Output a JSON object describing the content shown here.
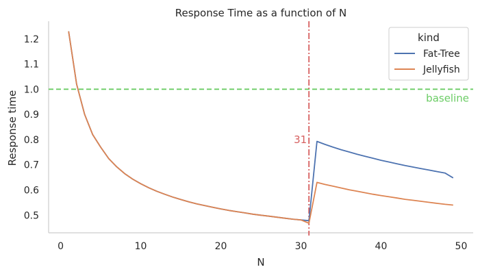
{
  "chart_data": {
    "type": "line",
    "title": "Response Time as a function of N",
    "xlabel": "N",
    "ylabel": "Response time",
    "xlim": [
      -1.5,
      51.5
    ],
    "ylim": [
      0.43,
      1.27
    ],
    "x_ticks": [
      0,
      10,
      20,
      30,
      40,
      50
    ],
    "y_ticks": [
      0.5,
      0.6,
      0.7,
      0.8,
      0.9,
      1.0,
      1.1,
      1.2
    ],
    "grid": false,
    "legend": {
      "title": "kind",
      "placement": "top-right"
    },
    "series": [
      {
        "name": "Fat-Tree",
        "color": "#4c72b0",
        "x": [
          1,
          2,
          3,
          4,
          5,
          6,
          7,
          8,
          9,
          10,
          11,
          12,
          13,
          14,
          15,
          16,
          17,
          18,
          19,
          20,
          21,
          22,
          23,
          24,
          25,
          26,
          27,
          28,
          29,
          30,
          31,
          32,
          33,
          34,
          35,
          36,
          37,
          38,
          39,
          40,
          41,
          42,
          43,
          44,
          45,
          46,
          47,
          48,
          49
        ],
        "y": [
          1.23,
          1.02,
          0.9,
          0.82,
          0.77,
          0.725,
          0.692,
          0.665,
          0.643,
          0.625,
          0.609,
          0.595,
          0.583,
          0.572,
          0.562,
          0.553,
          0.545,
          0.538,
          0.531,
          0.525,
          0.519,
          0.514,
          0.509,
          0.504,
          0.5,
          0.496,
          0.492,
          0.488,
          0.484,
          0.481,
          0.478,
          0.793,
          0.781,
          0.77,
          0.76,
          0.751,
          0.742,
          0.734,
          0.726,
          0.718,
          0.711,
          0.704,
          0.697,
          0.691,
          0.685,
          0.679,
          0.673,
          0.667,
          0.648
        ]
      },
      {
        "name": "Jellyfish",
        "color": "#dd8452",
        "x": [
          1,
          2,
          3,
          4,
          5,
          6,
          7,
          8,
          9,
          10,
          11,
          12,
          13,
          14,
          15,
          16,
          17,
          18,
          19,
          20,
          21,
          22,
          23,
          24,
          25,
          26,
          27,
          28,
          29,
          30,
          31,
          32,
          33,
          34,
          35,
          36,
          37,
          38,
          39,
          40,
          41,
          42,
          43,
          44,
          45,
          46,
          47,
          48,
          49
        ],
        "y": [
          1.23,
          1.02,
          0.9,
          0.82,
          0.77,
          0.725,
          0.692,
          0.665,
          0.643,
          0.625,
          0.609,
          0.595,
          0.583,
          0.572,
          0.562,
          0.553,
          0.545,
          0.538,
          0.531,
          0.525,
          0.519,
          0.514,
          0.509,
          0.504,
          0.5,
          0.496,
          0.492,
          0.488,
          0.484,
          0.481,
          0.468,
          0.63,
          0.622,
          0.615,
          0.608,
          0.601,
          0.595,
          0.589,
          0.583,
          0.578,
          0.573,
          0.568,
          0.563,
          0.559,
          0.555,
          0.551,
          0.547,
          0.543,
          0.54
        ]
      }
    ],
    "reference_lines": [
      {
        "orientation": "horizontal",
        "value": 1.0,
        "label": "baseline",
        "color": "#6acc64",
        "style": "dashed"
      },
      {
        "orientation": "vertical",
        "value": 31,
        "label": "31",
        "color": "#d65f5f",
        "style": "dashdot"
      }
    ]
  }
}
